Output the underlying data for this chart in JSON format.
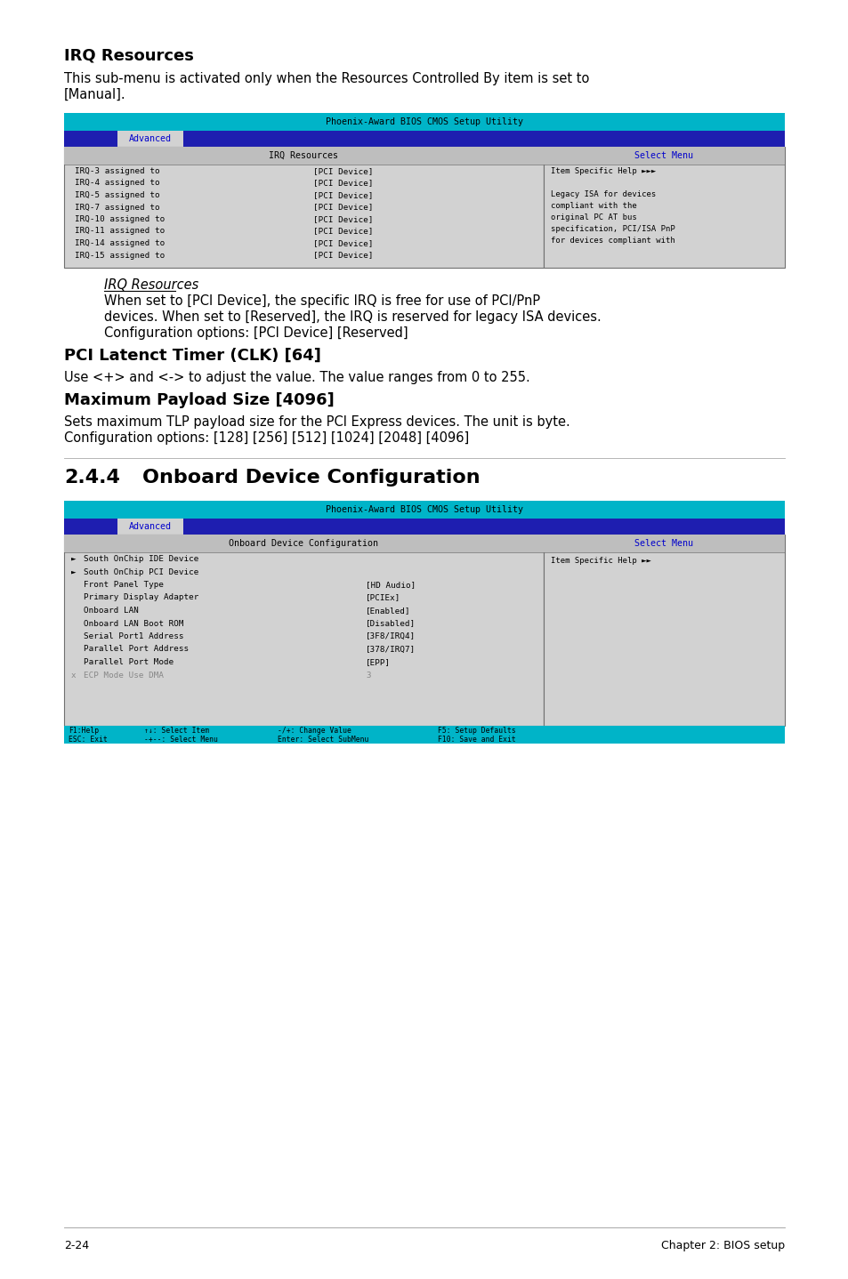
{
  "bg_color": "#ffffff",
  "section1_heading": "IRQ Resources",
  "section1_body": "This sub-menu is activated only when the Resources Controlled By item is set to\n[Manual].",
  "bios_title": "Phoenix-Award BIOS CMOS Setup Utility",
  "bios_tab": "Advanced",
  "bios1_left_header": "IRQ Resources",
  "bios1_right_header": "Select Menu",
  "bios_irq_rows": [
    [
      "IRQ-3 assigned to",
      "[PCI Device]"
    ],
    [
      "IRQ-4 assigned to",
      "[PCI Device]"
    ],
    [
      "IRQ-5 assigned to",
      "[PCI Device]"
    ],
    [
      "IRQ-7 assigned to",
      "[PCI Device]"
    ],
    [
      "IRQ-10 assigned to",
      "[PCI Device]"
    ],
    [
      "IRQ-11 assigned to",
      "[PCI Device]"
    ],
    [
      "IRQ-14 assigned to",
      "[PCI Device]"
    ],
    [
      "IRQ-15 assigned to",
      "[PCI Device]"
    ]
  ],
  "bios1_right_help": [
    "Item Specific Help ►►►",
    "",
    "Legacy ISA for devices",
    "compliant with the",
    "original PC AT bus",
    "specification, PCI/ISA PnP",
    "for devices compliant with"
  ],
  "irq_note_heading": "IRQ Resources",
  "irq_note_body": "When set to [PCI Device], the specific IRQ is free for use of PCI/PnP\ndevices. When set to [Reserved], the IRQ is reserved for legacy ISA devices.\nConfiguration options: [PCI Device] [Reserved]",
  "section2_heading": "PCI Latenct Timer (CLK) [64]",
  "section2_body": "Use <+> and <-> to adjust the value. The value ranges from 0 to 255.",
  "section3_heading": "Maximum Payload Size [4096]",
  "section3_body": "Sets maximum TLP payload size for the PCI Express devices. The unit is byte.\nConfiguration options: [128] [256] [512] [1024] [2048] [4096]",
  "section4_number": "2.4.4",
  "section4_title": "Onboard Device Configuration",
  "bios2_left_header": "Onboard Device Configuration",
  "bios2_right_header": "Select Menu",
  "bios2_rows": [
    [
      "►",
      "South OnChip IDE Device",
      "",
      false
    ],
    [
      "►",
      "South OnChip PCI Device",
      "",
      false
    ],
    [
      " ",
      "Front Panel Type",
      "[HD Audio]",
      false
    ],
    [
      " ",
      "Primary Display Adapter",
      "[PCIEx]",
      false
    ],
    [
      " ",
      "Onboard LAN",
      "[Enabled]",
      false
    ],
    [
      " ",
      "Onboard LAN Boot ROM",
      "[Disabled]",
      false
    ],
    [
      " ",
      "Serial Port1 Address",
      "[3F8/IRQ4]",
      false
    ],
    [
      " ",
      "Parallel Port Address",
      "[378/IRQ7]",
      false
    ],
    [
      " ",
      "Parallel Port Mode",
      "[EPP]",
      false
    ],
    [
      "x",
      "ECP Mode Use DMA",
      "3",
      true
    ]
  ],
  "bios2_right_help": "Item Specific Help ►►",
  "bios2_footer_row1": [
    "F1:Help",
    "↑↓: Select Item",
    "-/+: Change Value",
    "F5: Setup Defaults"
  ],
  "bios2_footer_row2": [
    "ESC: Exit",
    "-+--: Select Menu",
    "Enter: Select SubMenu",
    "F10: Save and Exit"
  ],
  "footer_left": "2-24",
  "footer_right": "Chapter 2: BIOS setup",
  "cyan": "#00b4c8",
  "dark_blue": "#1e1eb0",
  "panel_bg": "#d2d2d2",
  "header_bg": "#bebebe",
  "border_color": "#707070",
  "blue_text": "#0000cc",
  "mono": "monospace",
  "sans": "DejaVu Sans"
}
